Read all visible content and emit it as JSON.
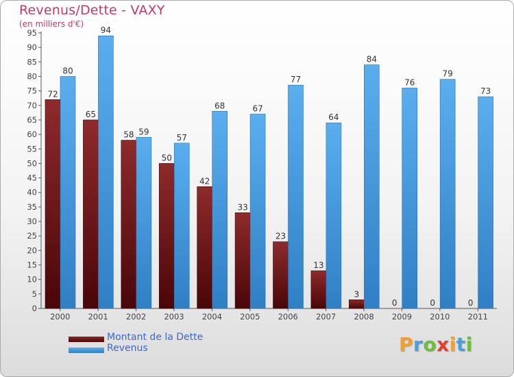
{
  "title": "Revenus/Dette - VAXY",
  "subtitle": "(en milliers d'€)",
  "legend": [
    {
      "label": "Montant de la Dette",
      "color": "#7a1a1e"
    },
    {
      "label": "Revenus",
      "color": "#4f9fe3"
    }
  ],
  "logo": {
    "text": "Proxiti",
    "letters": [
      {
        "ch": "P",
        "color": "#f0a030"
      },
      {
        "ch": "r",
        "color": "#4aa0d8"
      },
      {
        "ch": "o",
        "color": "#6cbf3a"
      },
      {
        "ch": "x",
        "color": "#e0402a"
      },
      {
        "ch": "i",
        "color": "#f0a030"
      },
      {
        "ch": "t",
        "color": "#4aa0d8"
      },
      {
        "ch": "i",
        "color": "#6cbf3a"
      }
    ]
  },
  "chart_data": {
    "type": "bar",
    "title": "Revenus/Dette - VAXY",
    "ylabel": "(en milliers d'€)",
    "xlabel": "",
    "categories": [
      "2000",
      "2001",
      "2002",
      "2003",
      "2004",
      "2005",
      "2006",
      "2007",
      "2008",
      "2009",
      "2010",
      "2011"
    ],
    "series": [
      {
        "name": "Montant de la Dette",
        "color": "#7a1a1e",
        "values": [
          72,
          65,
          58,
          50,
          42,
          33,
          23,
          13,
          3,
          0,
          0,
          0
        ]
      },
      {
        "name": "Revenus",
        "color": "#4f9fe3",
        "values": [
          80,
          94,
          59,
          57,
          68,
          67,
          77,
          64,
          84,
          76,
          79,
          73
        ]
      }
    ],
    "ylim": [
      0,
      95
    ],
    "ytick_step": 5,
    "grid": false,
    "legend_position": "bottom-left"
  }
}
